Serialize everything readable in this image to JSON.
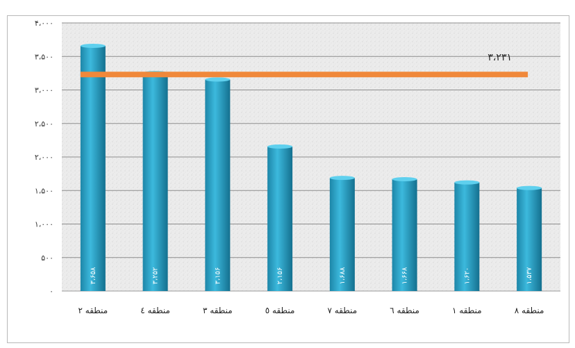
{
  "chart_data": {
    "type": "bar",
    "title": "",
    "xlabel": "",
    "ylabel": "",
    "categories": [
      "منطقه ۲",
      "منطقه ٤",
      "منطقه ۳",
      "منطقه ٥",
      "منطقه ۷",
      "منطقه ٦",
      "منطقه ۱",
      "منطقه ۸"
    ],
    "values": [
      3658,
      3252,
      3156,
      2156,
      1688,
      1668,
      1620,
      1537
    ],
    "value_labels": [
      "۳،۶۵۸",
      "۳،۲۵۲",
      "۳،۱۵۶",
      "۲،۱۵۶",
      "۱،۶۸۸",
      "۱،۶۶۸",
      "۱،۶۲۰",
      "۱،۵۳۷"
    ],
    "average": {
      "value": 3231,
      "label": "۳،۲۳۱"
    },
    "ylim": [
      0,
      4000
    ],
    "yticks": [
      0,
      500,
      1000,
      1500,
      2000,
      2500,
      3000,
      3500,
      4000
    ],
    "ytick_labels": [
      "۰",
      "۵۰۰",
      "۱،۰۰۰",
      "۱،۵۰۰",
      "۲،۰۰۰",
      "۲،۵۰۰",
      "۳،۰۰۰",
      "۳،۵۰۰",
      "۴،۰۰۰"
    ],
    "grid": true,
    "legend": "none",
    "colors": {
      "bar": "#29a9cf",
      "bar_dark": "#14708f",
      "average_line": "#f0883a",
      "grid": "#8c8c8c",
      "plot_bg": "#ececec"
    }
  }
}
